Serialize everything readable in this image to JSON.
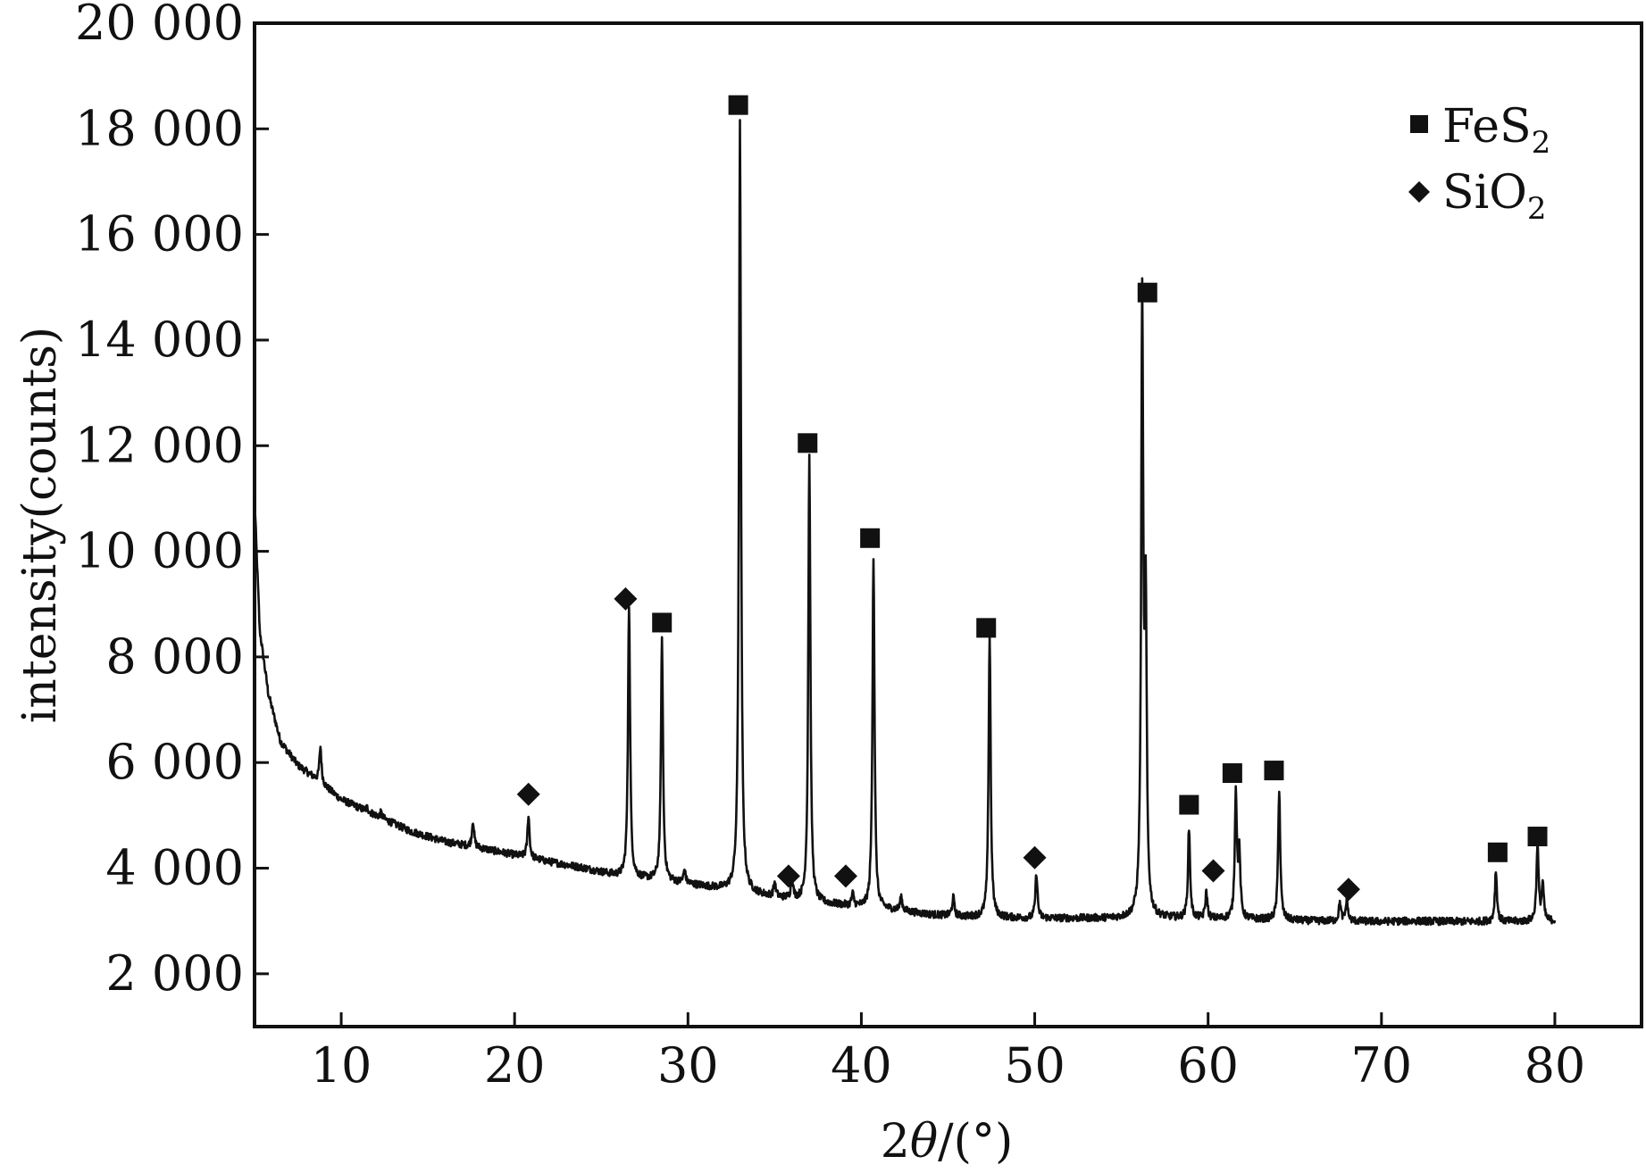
{
  "chart_data": {
    "type": "line",
    "title": "",
    "xlabel": {
      "prefix": "2",
      "symbol": "θ",
      "suffix": "/(°)"
    },
    "ylabel": "intensity(counts)",
    "xlim": [
      5,
      85
    ],
    "ylim": [
      1000,
      20000
    ],
    "x_ticks": [
      10,
      20,
      30,
      40,
      50,
      60,
      70,
      80
    ],
    "x_tick_labels": [
      "10",
      "20",
      "30",
      "40",
      "50",
      "60",
      "70",
      "80"
    ],
    "y_ticks": [
      2000,
      4000,
      6000,
      8000,
      10000,
      12000,
      14000,
      16000,
      18000,
      20000
    ],
    "y_tick_labels": [
      "2 000",
      "4 000",
      "6 000",
      "8 000",
      "10 000",
      "12 000",
      "14 000",
      "16 000",
      "18 000",
      "20 000"
    ],
    "grid": false,
    "legend_position": "top-right",
    "legend": [
      {
        "marker": "square",
        "base": "FeS",
        "sub": "2"
      },
      {
        "marker": "diamond",
        "base": "SiO",
        "sub": "2"
      }
    ],
    "series": [
      {
        "color": "#111111",
        "baseline": [
          [
            5,
            11000
          ],
          [
            5.3,
            8500
          ],
          [
            5.8,
            7300
          ],
          [
            6.5,
            6400
          ],
          [
            7.5,
            5950
          ],
          [
            8.5,
            5700
          ],
          [
            10,
            5300
          ],
          [
            12,
            5000
          ],
          [
            14,
            4700
          ],
          [
            16,
            4500
          ],
          [
            18,
            4380
          ],
          [
            20,
            4250
          ],
          [
            22,
            4120
          ],
          [
            24,
            4000
          ],
          [
            26,
            3850
          ],
          [
            28,
            3780
          ],
          [
            30,
            3700
          ],
          [
            32,
            3600
          ],
          [
            34,
            3500
          ],
          [
            36,
            3400
          ],
          [
            38,
            3320
          ],
          [
            40,
            3260
          ],
          [
            42,
            3200
          ],
          [
            44,
            3120
          ],
          [
            46,
            3080
          ],
          [
            48,
            3060
          ],
          [
            50,
            3050
          ],
          [
            52,
            3050
          ],
          [
            54,
            3050
          ],
          [
            56,
            3050
          ],
          [
            58,
            3050
          ],
          [
            60,
            3040
          ],
          [
            62,
            3030
          ],
          [
            64,
            3020
          ],
          [
            66,
            3000
          ],
          [
            68,
            3000
          ],
          [
            70,
            2990
          ],
          [
            72,
            3000
          ],
          [
            74,
            2990
          ],
          [
            76,
            2990
          ],
          [
            78,
            2990
          ],
          [
            80,
            3000
          ]
        ],
        "peaks": [
          [
            8.8,
            6300
          ],
          [
            11.5,
            5150
          ],
          [
            12.3,
            5050
          ],
          [
            17.6,
            4900
          ],
          [
            20.8,
            5000
          ],
          [
            26.6,
            9000
          ],
          [
            28.5,
            8300
          ],
          [
            29.8,
            3950
          ],
          [
            33.0,
            18100
          ],
          [
            35.0,
            3700
          ],
          [
            36.0,
            3800
          ],
          [
            37.0,
            11800
          ],
          [
            39.5,
            3500
          ],
          [
            40.7,
            9900
          ],
          [
            42.3,
            3450
          ],
          [
            45.3,
            3450
          ],
          [
            47.4,
            8400
          ],
          [
            50.1,
            3900
          ],
          [
            56.2,
            14500
          ],
          [
            56.4,
            8600
          ],
          [
            58.9,
            4750
          ],
          [
            59.9,
            3550
          ],
          [
            61.6,
            5450
          ],
          [
            61.8,
            4200
          ],
          [
            64.1,
            5500
          ],
          [
            67.6,
            3350
          ],
          [
            68.0,
            3400
          ],
          [
            76.6,
            3950
          ],
          [
            79.0,
            4450
          ],
          [
            79.3,
            3700
          ]
        ]
      }
    ],
    "annotations": [
      {
        "marker": "diamond",
        "x": 20.8,
        "y": 5400
      },
      {
        "marker": "diamond",
        "x": 26.4,
        "y": 9100
      },
      {
        "marker": "square",
        "x": 28.5,
        "y": 8650
      },
      {
        "marker": "square",
        "x": 32.9,
        "y": 18450
      },
      {
        "marker": "diamond",
        "x": 35.8,
        "y": 3850
      },
      {
        "marker": "square",
        "x": 36.9,
        "y": 12050
      },
      {
        "marker": "diamond",
        "x": 39.1,
        "y": 3850
      },
      {
        "marker": "square",
        "x": 40.5,
        "y": 10250
      },
      {
        "marker": "square",
        "x": 47.2,
        "y": 8550
      },
      {
        "marker": "diamond",
        "x": 50.0,
        "y": 4200
      },
      {
        "marker": "square",
        "x": 56.5,
        "y": 14900
      },
      {
        "marker": "square",
        "x": 58.9,
        "y": 5200
      },
      {
        "marker": "diamond",
        "x": 60.3,
        "y": 3950
      },
      {
        "marker": "square",
        "x": 61.4,
        "y": 5800
      },
      {
        "marker": "square",
        "x": 63.8,
        "y": 5850
      },
      {
        "marker": "diamond",
        "x": 68.1,
        "y": 3600
      },
      {
        "marker": "square",
        "x": 76.7,
        "y": 4300
      },
      {
        "marker": "square",
        "x": 79.0,
        "y": 4600
      }
    ]
  }
}
